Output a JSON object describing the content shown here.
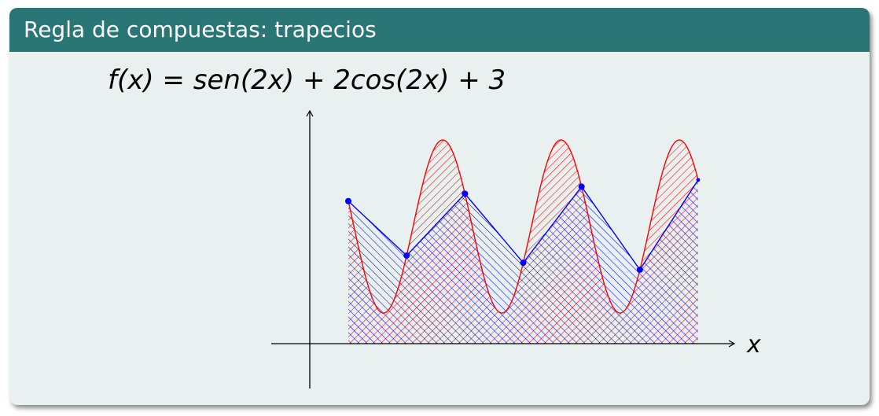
{
  "slide": {
    "title": "Regla de compuestas: trapecios"
  },
  "formula": {
    "lhs": "f(x)",
    "eq": " = ",
    "rhs": "sen(2x) + 2cos(2x) + 3"
  },
  "axes": {
    "x_label": "x"
  },
  "colors": {
    "title_bar": "#2a7575",
    "block_background": "#e9f1f0",
    "function_curve": "#ff0000",
    "trapezoid_lines": "#0000ff",
    "nodes": "#0000ff"
  },
  "chart_data": {
    "type": "line",
    "function": "sen(2x) + 2cos(2x) + 3",
    "series": [
      {
        "name": "f(x)",
        "kind": "curve",
        "color": "#ff0000",
        "hatch": "north east lines"
      },
      {
        "name": "trapezoid approximation",
        "kind": "polyline",
        "color": "#0000ff",
        "hatch": "north west lines",
        "nodes": 7
      }
    ],
    "xlabel": "x",
    "ylabel": "",
    "grid": false,
    "legend": false
  }
}
